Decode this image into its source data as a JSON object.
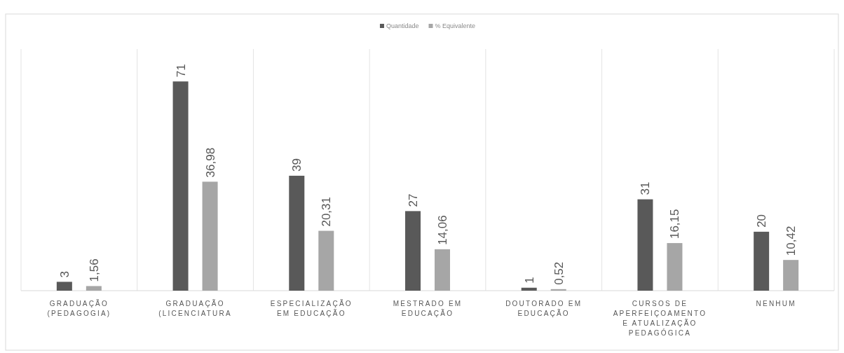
{
  "chart_data": {
    "type": "bar",
    "categories": [
      "GRADUAÇÃO (PEDAGOGIA)",
      "GRADUAÇÃO (LICENCIATURA",
      "ESPECIALIZAÇÃO EM EDUCAÇÃO",
      "MESTRADO EM EDUCAÇÃO",
      "DOUTORADO EM EDUCAÇÃO",
      "CURSOS DE APERFEIÇOAMENTO E ATUALIZAÇÃO PEDAGÓGICA",
      "NENHUM"
    ],
    "series": [
      {
        "name": "Quantidade",
        "color": "#595959",
        "values": [
          3,
          71,
          39,
          27,
          1,
          31,
          20
        ],
        "value_labels": [
          "3",
          "71",
          "39",
          "27",
          "1",
          "31",
          "20"
        ]
      },
      {
        "name": "% Equivalente",
        "color": "#a6a6a6",
        "values": [
          1.56,
          36.98,
          20.31,
          14.06,
          0.52,
          16.15,
          10.42
        ],
        "value_labels": [
          "1,56",
          "36,98",
          "20,31",
          "14,06",
          "0,52",
          "16,15",
          "10,42"
        ]
      }
    ],
    "ylim": [
      0,
      82
    ],
    "grid": "x",
    "legend": "top"
  }
}
